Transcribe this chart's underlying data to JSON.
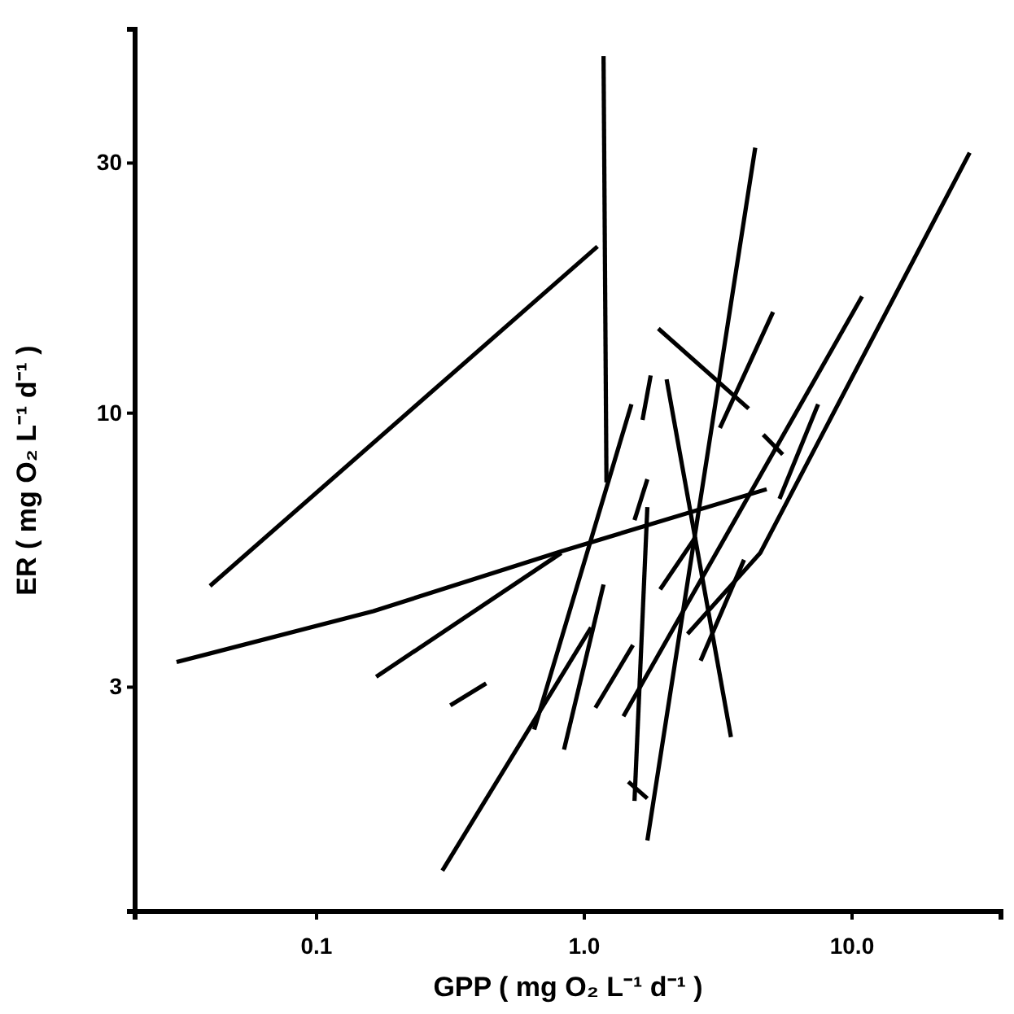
{
  "chart_data": {
    "type": "line",
    "xlabel": "GPP ( mg O₂ L⁻¹ d⁻¹ )",
    "ylabel": "ER ( mg O₂ L⁻¹ d⁻¹ )",
    "log": "xy",
    "grid": false,
    "xlim": [
      0.021,
      36
    ],
    "ylim": [
      1.12,
      54
    ],
    "xticks": [
      {
        "value": 0.1,
        "label": "0.1"
      },
      {
        "value": 1,
        "label": "1.0"
      },
      {
        "value": 10,
        "label": "10.0"
      }
    ],
    "yticks": [
      3,
      10,
      30
    ],
    "series": [
      {
        "color": "#000000",
        "x": [
          0.04,
          1.12
        ],
        "values": [
          4.68,
          20.8
        ]
      },
      {
        "color": "#000000",
        "x": [
          0.03,
          0.163,
          0.82,
          4.8
        ],
        "values": [
          3.35,
          4.19,
          5.45,
          7.16
        ]
      },
      {
        "color": "#000000",
        "x": [
          0.167,
          0.82
        ],
        "values": [
          3.14,
          5.41
        ]
      },
      {
        "color": "#000000",
        "x": [
          0.316,
          0.43
        ],
        "values": [
          2.77,
          3.05
        ]
      },
      {
        "color": "#000000",
        "x": [
          0.295,
          1.06
        ],
        "values": [
          1.34,
          3.9
        ]
      },
      {
        "color": "#000000",
        "x": [
          0.65,
          1.5
        ],
        "values": [
          2.49,
          10.4
        ]
      },
      {
        "color": "#000000",
        "x": [
          1.18,
          1.21
        ],
        "values": [
          48,
          7.38
        ]
      },
      {
        "color": "#000000",
        "x": [
          0.84,
          1.18
        ],
        "values": [
          2.28,
          4.71
        ]
      },
      {
        "color": "#000000",
        "x": [
          1.1,
          1.52
        ],
        "values": [
          2.74,
          3.61
        ]
      },
      {
        "color": "#000000",
        "x": [
          1.4,
          10.9
        ],
        "values": [
          2.64,
          16.7
        ]
      },
      {
        "color": "#000000",
        "x": [
          2.03,
          3.53
        ],
        "values": [
          11.6,
          2.41
        ]
      },
      {
        "color": "#000000",
        "x": [
          1.72,
          4.35
        ],
        "values": [
          1.53,
          32.1
        ]
      },
      {
        "color": "#000000",
        "x": [
          1.54,
          1.72
        ],
        "values": [
          1.82,
          6.62
        ]
      },
      {
        "color": "#000000",
        "x": [
          2.72,
          3.95
        ],
        "values": [
          3.37,
          5.25
        ]
      },
      {
        "color": "#000000",
        "x": [
          2.43,
          4.54,
          27.5
        ],
        "values": [
          3.79,
          5.41,
          31.4
        ]
      },
      {
        "color": "#000000",
        "x": [
          1.92,
          2.61
        ],
        "values": [
          4.61,
          5.81
        ]
      },
      {
        "color": "#000000",
        "x": [
          1.89,
          4.11
        ],
        "values": [
          14.5,
          10.2
        ]
      },
      {
        "color": "#000000",
        "x": [
          3.21,
          5.07
        ],
        "values": [
          9.37,
          15.6
        ]
      },
      {
        "color": "#000000",
        "x": [
          4.66,
          5.51
        ],
        "values": [
          9.1,
          8.34
        ]
      },
      {
        "color": "#000000",
        "x": [
          5.36,
          7.47
        ],
        "values": [
          6.86,
          10.4
        ]
      },
      {
        "color": "#000000",
        "x": [
          1.65,
          1.77
        ],
        "values": [
          9.71,
          11.8
        ]
      },
      {
        "color": "#000000",
        "x": [
          1.54,
          1.72
        ],
        "values": [
          6.25,
          7.48
        ]
      },
      {
        "color": "#000000",
        "x": [
          1.46,
          1.72
        ],
        "values": [
          1.98,
          1.84
        ]
      }
    ]
  }
}
